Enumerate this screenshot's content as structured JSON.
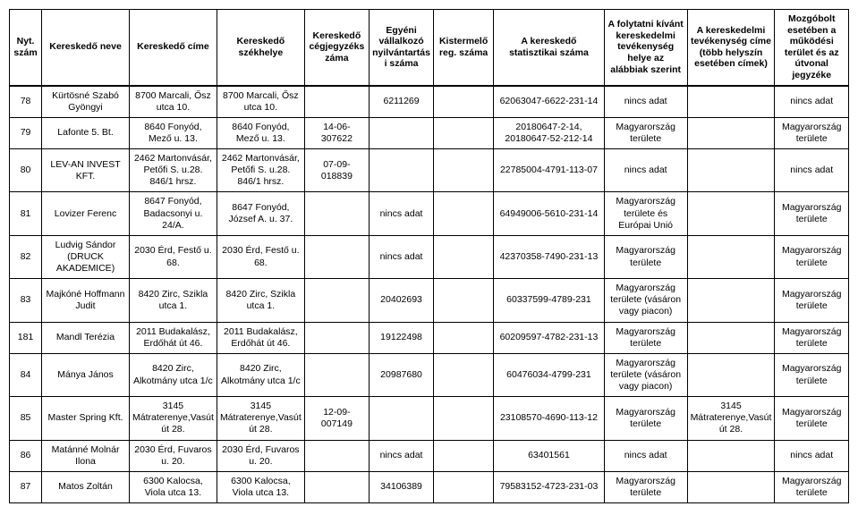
{
  "headers": [
    "Nyt. szám",
    "Kereskedő neve",
    "Kereskedő címe",
    "Kereskedő székhelye",
    "Kereskedő cégjegyzéks záma",
    "Egyéni vállalkozó nyilvántartási száma",
    "Kistermelő reg. száma",
    "A kereskedő statisztikai száma",
    "A folytatni kívánt kereskedelmi tevékenység helye az alábbiak szerint",
    "A kereskedelmi tevékenység címe (több helyszín esetében címek)",
    "Mozgóbolt esetében a működési terület és az útvonal jegyzéke"
  ],
  "rows": [
    [
      "78",
      "Kürtösné Szabó Gyöngyi",
      "8700 Marcali, Ősz utca 10.",
      "8700 Marcali, Ősz utca 10.",
      "",
      "6211269",
      "",
      "62063047-6622-231-14",
      "nincs adat",
      "",
      "nincs adat"
    ],
    [
      "79",
      "Lafonte 5. Bt.",
      "8640 Fonyód, Mező u. 13.",
      "8640 Fonyód, Mező u. 13.",
      "14-06-307622",
      "",
      "",
      "20180647-2-14, 20180647-52-212-14",
      "Magyarország területe",
      "",
      "Magyarország területe"
    ],
    [
      "80",
      "LEV-AN INVEST KFT.",
      "2462 Martonvásár, Petőfi S. u.28. 846/1 hrsz.",
      "2462 Martonvásár, Petőfi S. u.28. 846/1 hrsz.",
      "07-09-018839",
      "",
      "",
      "22785004-4791-113-07",
      "nincs adat",
      "",
      "nincs adat"
    ],
    [
      "81",
      "Lovizer Ferenc",
      "8647 Fonyód, Badacsonyi u. 24/A.",
      "8647 Fonyód, József A. u. 37.",
      "",
      "nincs adat",
      "",
      "64949006-5610-231-14",
      "Magyarország területe és Európai Unió",
      "",
      "Magyarország területe"
    ],
    [
      "82",
      "Ludvig Sándor (DRUCK AKADEMICE)",
      "2030 Érd, Festő u. 68.",
      "2030 Érd, Festő u. 68.",
      "",
      "nincs adat",
      "",
      "42370358-7490-231-13",
      "Magyarország területe",
      "",
      "Magyarország területe"
    ],
    [
      "83",
      "Majkóné Hoffmann Judit",
      "8420 Zirc, Szikla utca 1.",
      "8420 Zirc, Szikla utca 1.",
      "",
      "20402693",
      "",
      "60337599-4789-231",
      "Magyarország területe (vásáron vagy piacon)",
      "",
      "Magyarország területe"
    ],
    [
      "181",
      "Mandl Terézia",
      "2011 Budakalász, Erdőhát út 46.",
      "2011 Budakalász, Erdőhát út 46.",
      "",
      "19122498",
      "",
      "60209597-4782-231-13",
      "Magyarország területe",
      "",
      "Magyarország területe"
    ],
    [
      "84",
      "Mánya János",
      "8420 Zirc, Alkotmány utca 1/c",
      "8420 Zirc, Alkotmány utca 1/c",
      "",
      "20987680",
      "",
      "60476034-4799-231",
      "Magyarország területe (vásáron vagy piacon)",
      "",
      "Magyarország területe"
    ],
    [
      "85",
      "Master Spring Kft.",
      "3145 Mátraterenye,Vasút út 28.",
      "3145 Mátraterenye,Vasút út 28.",
      "12-09-007149",
      "",
      "",
      "23108570-4690-113-12",
      "Magyarország területe",
      "3145 Mátraterenye,Vasút út 28.",
      "Magyarország területe"
    ],
    [
      "86",
      "Matánné Molnár Ilona",
      "2030 Érd, Fuvaros u. 20.",
      "2030 Érd, Fuvaros u. 20.",
      "",
      "nincs adat",
      "",
      "63401561",
      "nincs adat",
      "",
      "nincs adat"
    ],
    [
      "87",
      "Matos Zoltán",
      "6300 Kalocsa, Viola utca 13.",
      "6300 Kalocsa, Viola utca 13.",
      "",
      "34106389",
      "",
      "79583152-4723-231-03",
      "Magyarország területe",
      "",
      "Magyarország területe"
    ]
  ],
  "style": {
    "font_family": "Arial, sans-serif",
    "header_fontsize_pt": 10.5,
    "body_fontsize_pt": 10.5,
    "border_color": "#000000",
    "background_color": "#ffffff",
    "text_color": "#000000",
    "column_widths_pct": [
      3.5,
      9.5,
      9.5,
      9.5,
      7,
      7,
      6.5,
      12,
      9,
      9.5,
      8
    ]
  }
}
